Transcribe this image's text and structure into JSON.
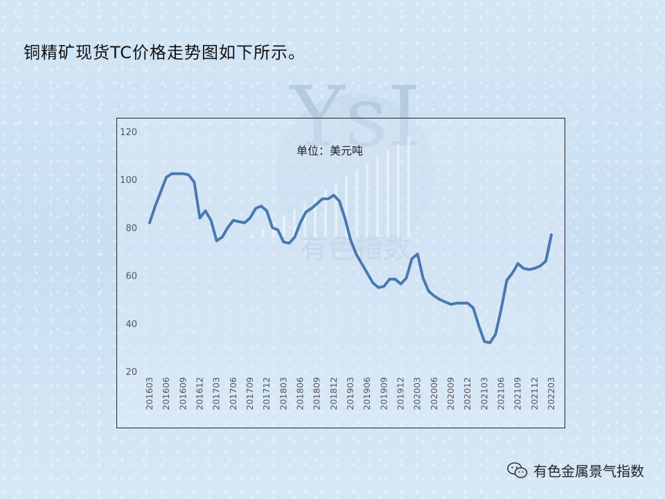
{
  "heading": "铜精矿现货TC价格走势图如下所示。",
  "watermark": {
    "logo_text": "YsI",
    "brand_text": "有色指数"
  },
  "footer": {
    "account_name": "有色金属景气指数",
    "icon": "wechat-icon"
  },
  "chart_data": {
    "type": "line",
    "title": "",
    "unit_label": "单位：美元吨",
    "xlabel": "",
    "ylabel": "",
    "ylim": [
      20,
      120
    ],
    "yticks": [
      20,
      40,
      60,
      80,
      100,
      120
    ],
    "grid": false,
    "line_color": "#4a78b0",
    "x": [
      "201603",
      "201604",
      "201605",
      "201606",
      "201607",
      "201608",
      "201609",
      "201610",
      "201611",
      "201612",
      "201701",
      "201702",
      "201703",
      "201704",
      "201705",
      "201706",
      "201707",
      "201708",
      "201709",
      "201710",
      "201711",
      "201712",
      "201801",
      "201802",
      "201803",
      "201804",
      "201805",
      "201806",
      "201807",
      "201808",
      "201809",
      "201810",
      "201811",
      "201812",
      "201901",
      "201902",
      "201903",
      "201904",
      "201905",
      "201906",
      "201907",
      "201908",
      "201909",
      "201910",
      "201911",
      "201912",
      "202001",
      "202002",
      "202003",
      "202004",
      "202005",
      "202006",
      "202007",
      "202008",
      "202009",
      "202010",
      "202011",
      "202012",
      "202101",
      "202102",
      "202103",
      "202104",
      "202105",
      "202106",
      "202107",
      "202108",
      "202109",
      "202110",
      "202111",
      "202112",
      "202201",
      "202202",
      "202203"
    ],
    "xtick_labels": [
      "201603",
      "201606",
      "201609",
      "201612",
      "201703",
      "201706",
      "201709",
      "201712",
      "201803",
      "201806",
      "201809",
      "201812",
      "201903",
      "201906",
      "201909",
      "201912",
      "202003",
      "202006",
      "202009",
      "202012",
      "202103",
      "202106",
      "202109",
      "202112",
      "202203"
    ],
    "series": [
      {
        "values": [
          82,
          89,
          95,
          101,
          102.5,
          102.5,
          102.5,
          102,
          99,
          84,
          87,
          83,
          74.5,
          76,
          80,
          83,
          82.5,
          82,
          84,
          88,
          89,
          87,
          80,
          79,
          74,
          73.5,
          76,
          82,
          86.5,
          88,
          90,
          92,
          92,
          93.5,
          91,
          84,
          75,
          69,
          65,
          61,
          57,
          55,
          55.5,
          58.5,
          58.5,
          56.5,
          59,
          67,
          69,
          59,
          53.5,
          51.5,
          50,
          49,
          48,
          48.5,
          48.5,
          48.5,
          46.5,
          39,
          32.5,
          32,
          35.5,
          46,
          58,
          61,
          65,
          63,
          62.5,
          63,
          64,
          66,
          77
        ]
      }
    ]
  }
}
